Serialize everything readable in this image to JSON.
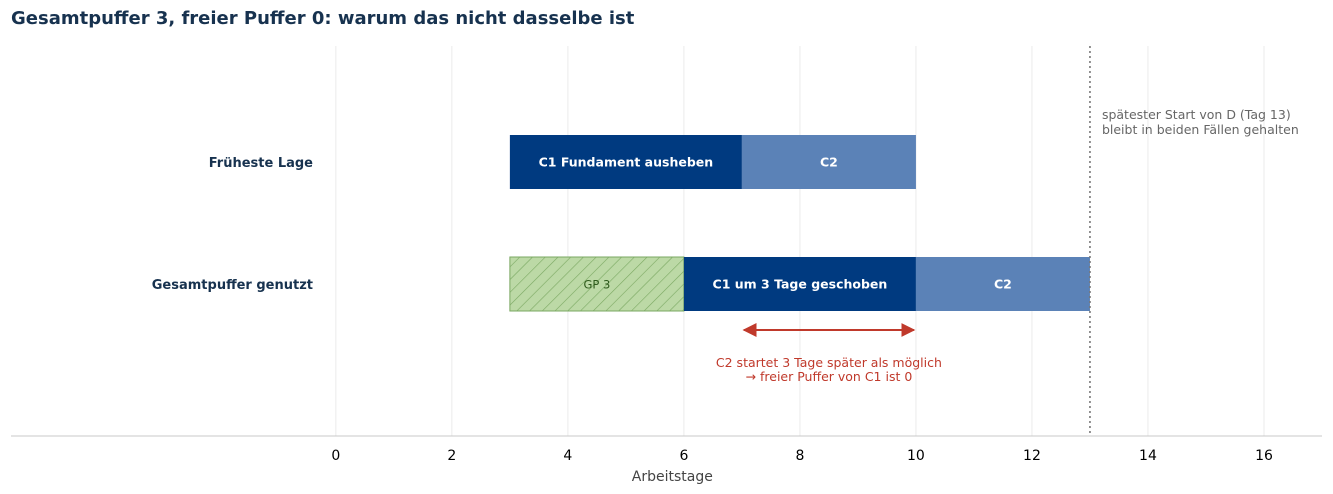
{
  "colors": {
    "title": "#17324f",
    "c1": "#003a80",
    "c2": "#5b82b7",
    "float_fill": "#bcd9a6",
    "float_stroke": "#7aa862",
    "arrow": "#c0392b",
    "deadline": "#777777",
    "grid": "#ebebeb"
  },
  "chart_data": {
    "type": "gantt",
    "title": "Gesamtpuffer 3, freier Puffer 0: warum das nicht dasselbe ist",
    "xlabel": "Arbeitstage",
    "xlim": [
      -5.6,
      17
    ],
    "xticks": [
      0,
      2,
      4,
      6,
      8,
      10,
      12,
      14,
      16
    ],
    "grid": "vertical",
    "rows": [
      {
        "label": "Früheste Lage",
        "bars": [
          {
            "start": 3,
            "end": 7,
            "label": "C1  Fundament ausheben",
            "kind": "c1"
          },
          {
            "start": 7,
            "end": 10,
            "label": "C2",
            "kind": "c2"
          }
        ]
      },
      {
        "label": "Gesamtpuffer genutzt",
        "bars": [
          {
            "start": 3,
            "end": 6,
            "label": "GP 3",
            "kind": "float"
          },
          {
            "start": 6,
            "end": 10,
            "label": "C1 um 3 Tage geschoben",
            "kind": "c1"
          },
          {
            "start": 10,
            "end": 13,
            "label": "C2",
            "kind": "c2"
          }
        ]
      }
    ],
    "deadline": {
      "x": 13,
      "text": [
        "spätester Start von D (Tag 13)",
        "bleibt in beiden Fällen gehalten"
      ]
    },
    "arrow": {
      "x_from": 7,
      "x_to": 10,
      "text": [
        "C2 startet 3 Tage später als möglich",
        "→ freier Puffer von C1 ist 0"
      ]
    }
  }
}
